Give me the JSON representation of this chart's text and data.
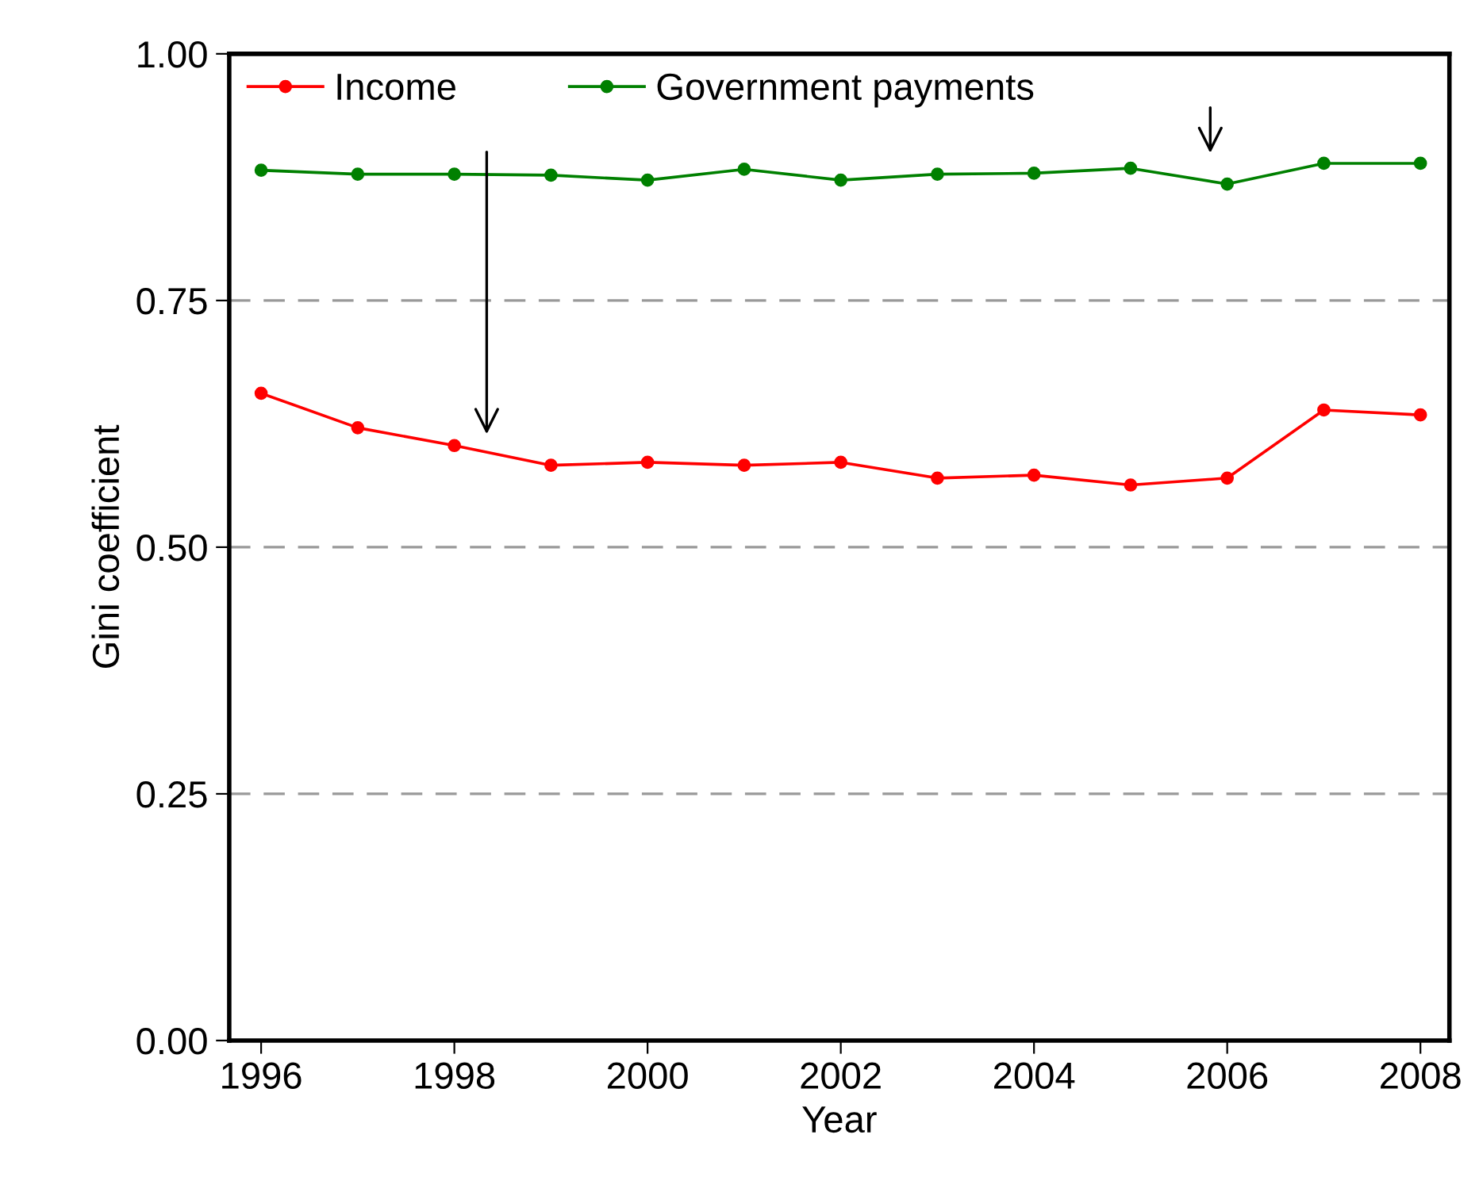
{
  "chart_data": {
    "type": "line",
    "xlabel": "Year",
    "ylabel": "Gini coefficient",
    "x": [
      1996,
      1997,
      1998,
      1999,
      2000,
      2001,
      2002,
      2003,
      2004,
      2005,
      2006,
      2007,
      2008
    ],
    "series": [
      {
        "name": "Income",
        "color": "#ff0000",
        "values": [
          0.656,
          0.621,
          0.603,
          0.583,
          0.586,
          0.583,
          0.586,
          0.57,
          0.573,
          0.563,
          0.57,
          0.639,
          0.634
        ]
      },
      {
        "name": "Government payments",
        "color": "#008000",
        "values": [
          0.882,
          0.878,
          0.878,
          0.877,
          0.872,
          0.883,
          0.872,
          0.878,
          0.879,
          0.884,
          0.868,
          0.889,
          0.889
        ]
      }
    ],
    "xlim": [
      1995.67,
      2008.3
    ],
    "ylim": [
      0,
      1
    ],
    "xticks": [
      1996,
      1998,
      2000,
      2002,
      2004,
      2006,
      2008
    ],
    "yticks": [
      {
        "value": 0,
        "label": "0.00"
      },
      {
        "value": 0.25,
        "label": "0.25"
      },
      {
        "value": 0.5,
        "label": "0.50"
      },
      {
        "value": 0.75,
        "label": "0.75"
      },
      {
        "value": 1,
        "label": "1.00"
      }
    ],
    "grid": "y",
    "legend": "top left",
    "marker": "circle",
    "line_style": "solid"
  }
}
